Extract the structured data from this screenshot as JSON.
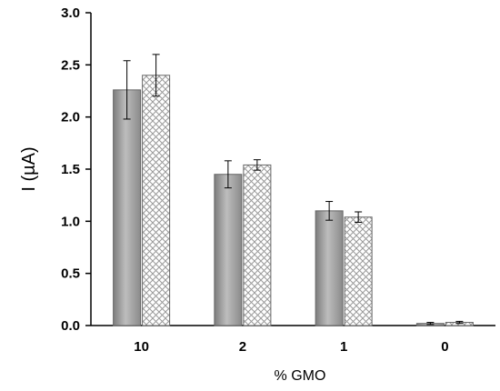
{
  "chart_data": {
    "type": "bar",
    "title": "",
    "xlabel": "% GMO",
    "ylabel": "I (µA)",
    "ylim": [
      0,
      3.0
    ],
    "yticks": [
      "0.0",
      "0.5",
      "1.0",
      "1.5",
      "2.0",
      "2.5",
      "3.0"
    ],
    "categories": [
      "10",
      "2",
      "1",
      "0"
    ],
    "series": [
      {
        "pattern": "solid-gray-gradient",
        "color": "#9a9a9a",
        "values": [
          2.26,
          1.45,
          1.1,
          0.02
        ],
        "errors": [
          0.28,
          0.13,
          0.09,
          0.01
        ]
      },
      {
        "pattern": "crosshatch",
        "color": "#c8c8c8",
        "values": [
          2.4,
          1.54,
          1.04,
          0.03
        ],
        "errors": [
          0.2,
          0.05,
          0.05,
          0.01
        ]
      }
    ],
    "grid": false,
    "legend": "none"
  }
}
